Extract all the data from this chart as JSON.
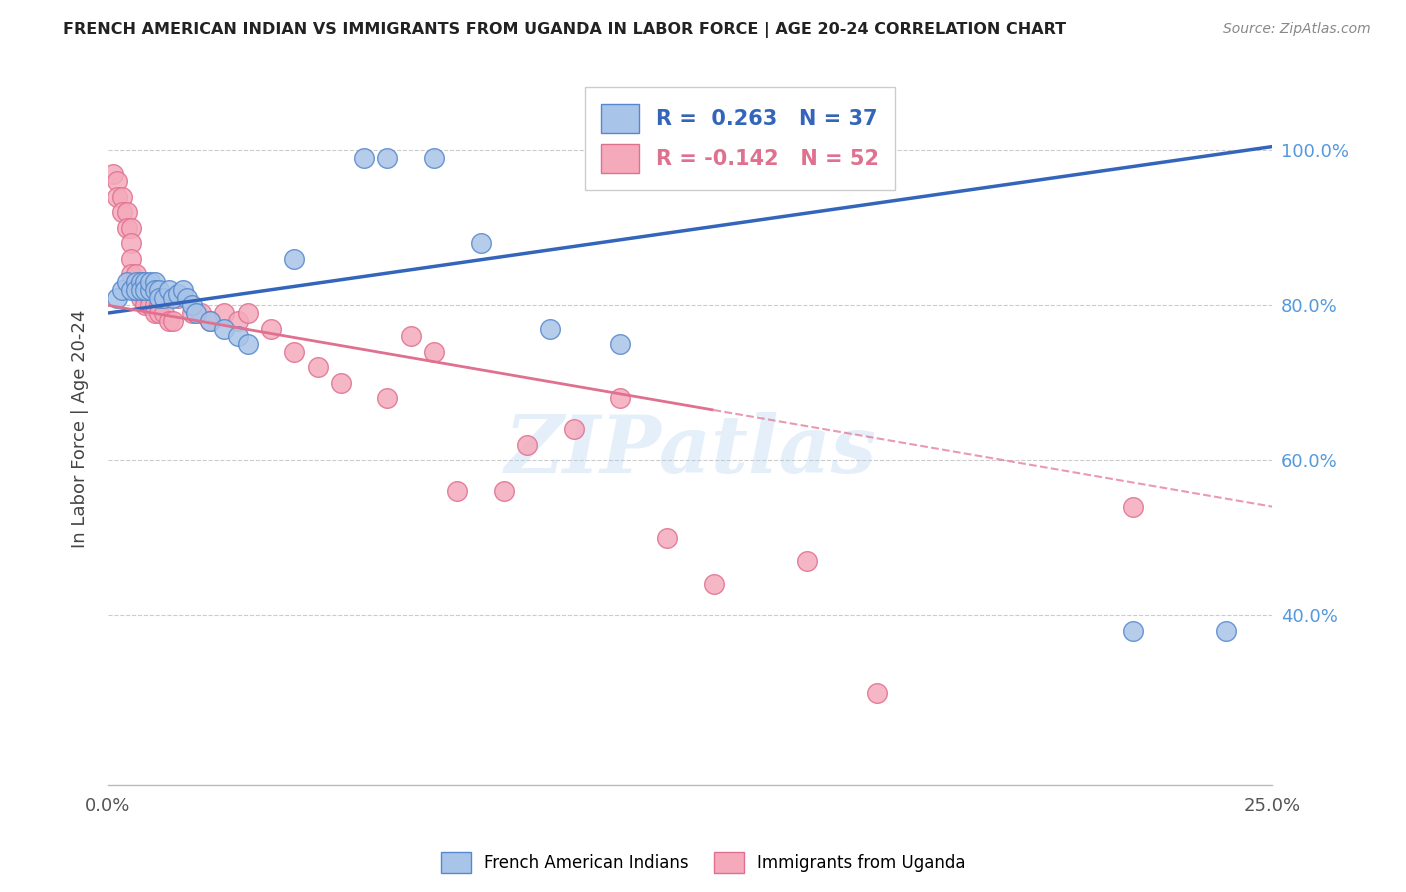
{
  "title": "FRENCH AMERICAN INDIAN VS IMMIGRANTS FROM UGANDA IN LABOR FORCE | AGE 20-24 CORRELATION CHART",
  "source": "Source: ZipAtlas.com",
  "ylabel": "In Labor Force | Age 20-24",
  "ytick_vals": [
    0.4,
    0.6,
    0.8,
    1.0
  ],
  "ytick_labels": [
    "40.0%",
    "60.0%",
    "80.0%",
    "100.0%"
  ],
  "xlim": [
    0.0,
    0.25
  ],
  "ylim": [
    0.18,
    1.1
  ],
  "blue_R": 0.263,
  "blue_N": 37,
  "pink_R": -0.142,
  "pink_N": 52,
  "legend_label_blue": "French American Indians",
  "legend_label_pink": "Immigrants from Uganda",
  "blue_fill": "#A8C4E8",
  "pink_fill": "#F4AABB",
  "blue_edge": "#5588CC",
  "pink_edge": "#E07090",
  "blue_line": "#3366BB",
  "pink_line": "#E07090",
  "watermark": "ZIPatlas",
  "bg": "#FFFFFF",
  "grid_color": "#CCCCCC",
  "blue_x": [
    0.002,
    0.003,
    0.004,
    0.005,
    0.006,
    0.006,
    0.007,
    0.007,
    0.008,
    0.008,
    0.009,
    0.009,
    0.01,
    0.01,
    0.011,
    0.011,
    0.012,
    0.013,
    0.014,
    0.015,
    0.016,
    0.017,
    0.018,
    0.019,
    0.022,
    0.025,
    0.028,
    0.03,
    0.04,
    0.055,
    0.06,
    0.07,
    0.08,
    0.095,
    0.11,
    0.22,
    0.24
  ],
  "blue_y": [
    0.81,
    0.82,
    0.83,
    0.82,
    0.83,
    0.82,
    0.83,
    0.82,
    0.83,
    0.82,
    0.82,
    0.83,
    0.83,
    0.82,
    0.82,
    0.81,
    0.81,
    0.82,
    0.81,
    0.815,
    0.82,
    0.81,
    0.8,
    0.79,
    0.78,
    0.77,
    0.76,
    0.75,
    0.86,
    0.99,
    0.99,
    0.99,
    0.88,
    0.77,
    0.75,
    0.38,
    0.38
  ],
  "pink_x": [
    0.001,
    0.002,
    0.002,
    0.003,
    0.003,
    0.004,
    0.004,
    0.005,
    0.005,
    0.005,
    0.005,
    0.006,
    0.006,
    0.007,
    0.007,
    0.007,
    0.008,
    0.008,
    0.008,
    0.009,
    0.009,
    0.01,
    0.01,
    0.011,
    0.011,
    0.012,
    0.013,
    0.014,
    0.015,
    0.018,
    0.02,
    0.022,
    0.025,
    0.028,
    0.03,
    0.035,
    0.04,
    0.045,
    0.05,
    0.06,
    0.065,
    0.07,
    0.075,
    0.085,
    0.09,
    0.1,
    0.11,
    0.12,
    0.13,
    0.15,
    0.165,
    0.22
  ],
  "pink_y": [
    0.97,
    0.96,
    0.94,
    0.94,
    0.92,
    0.92,
    0.9,
    0.9,
    0.88,
    0.86,
    0.84,
    0.84,
    0.82,
    0.83,
    0.82,
    0.81,
    0.82,
    0.81,
    0.8,
    0.81,
    0.8,
    0.8,
    0.79,
    0.8,
    0.79,
    0.79,
    0.78,
    0.78,
    0.81,
    0.79,
    0.79,
    0.78,
    0.79,
    0.78,
    0.79,
    0.77,
    0.74,
    0.72,
    0.7,
    0.68,
    0.76,
    0.74,
    0.56,
    0.56,
    0.62,
    0.64,
    0.68,
    0.5,
    0.44,
    0.47,
    0.3,
    0.54
  ]
}
